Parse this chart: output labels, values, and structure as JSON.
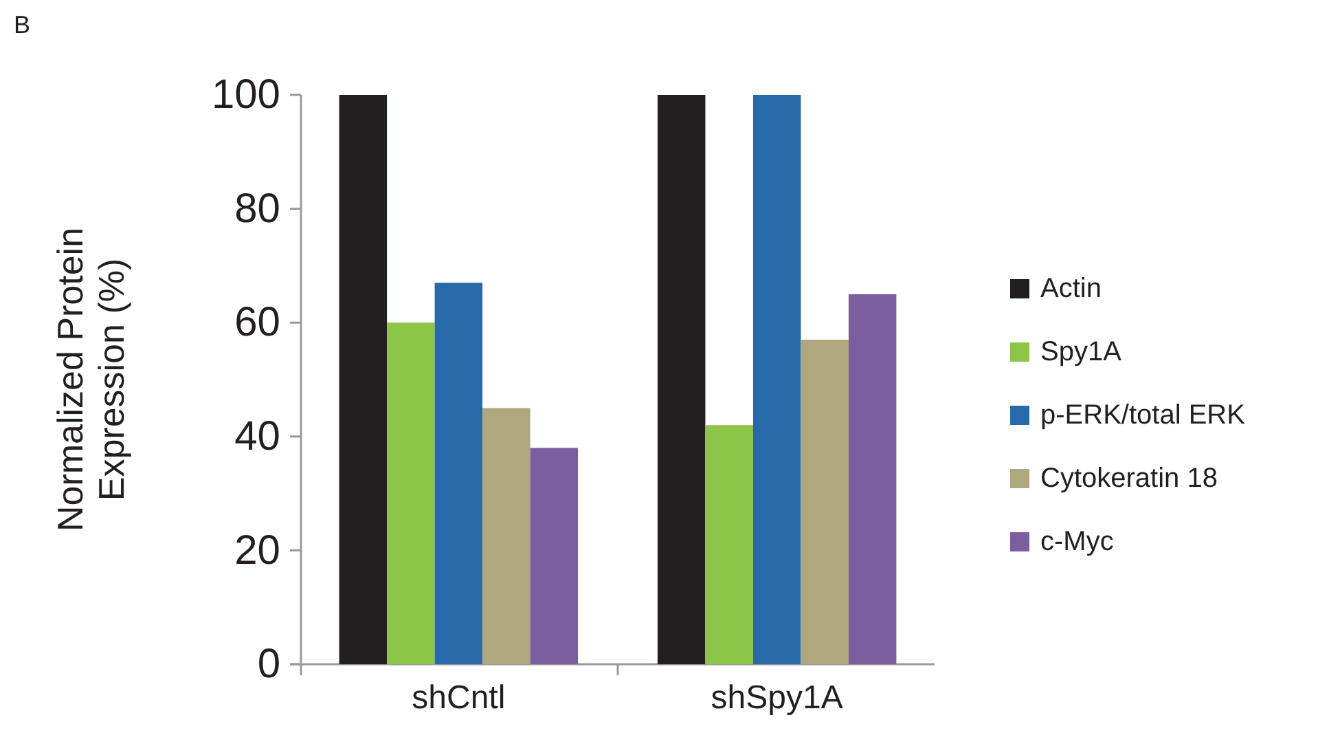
{
  "chart_data": {
    "type": "bar",
    "title": "B",
    "ylabel": "Normalized Protein Expression (%)",
    "categories": [
      "shCntl",
      "shSpy1A"
    ],
    "series": [
      {
        "name": "Actin",
        "color": "#231f20",
        "values": [
          100,
          100
        ]
      },
      {
        "name": "Spy1A",
        "color": "#8dc549",
        "values": [
          60,
          42
        ]
      },
      {
        "name": "p-ERK/total ERK",
        "color": "#2869a9",
        "values": [
          67,
          100
        ]
      },
      {
        "name": "Cytokeratin 18",
        "color": "#afa87d",
        "values": [
          45,
          57
        ]
      },
      {
        "name": "c-Myc",
        "color": "#7b5da0",
        "values": [
          38,
          65
        ]
      }
    ],
    "ylim": [
      0,
      100
    ],
    "yticks": [
      0,
      20,
      40,
      60,
      80,
      100
    ],
    "legend": "right",
    "grid": false
  }
}
